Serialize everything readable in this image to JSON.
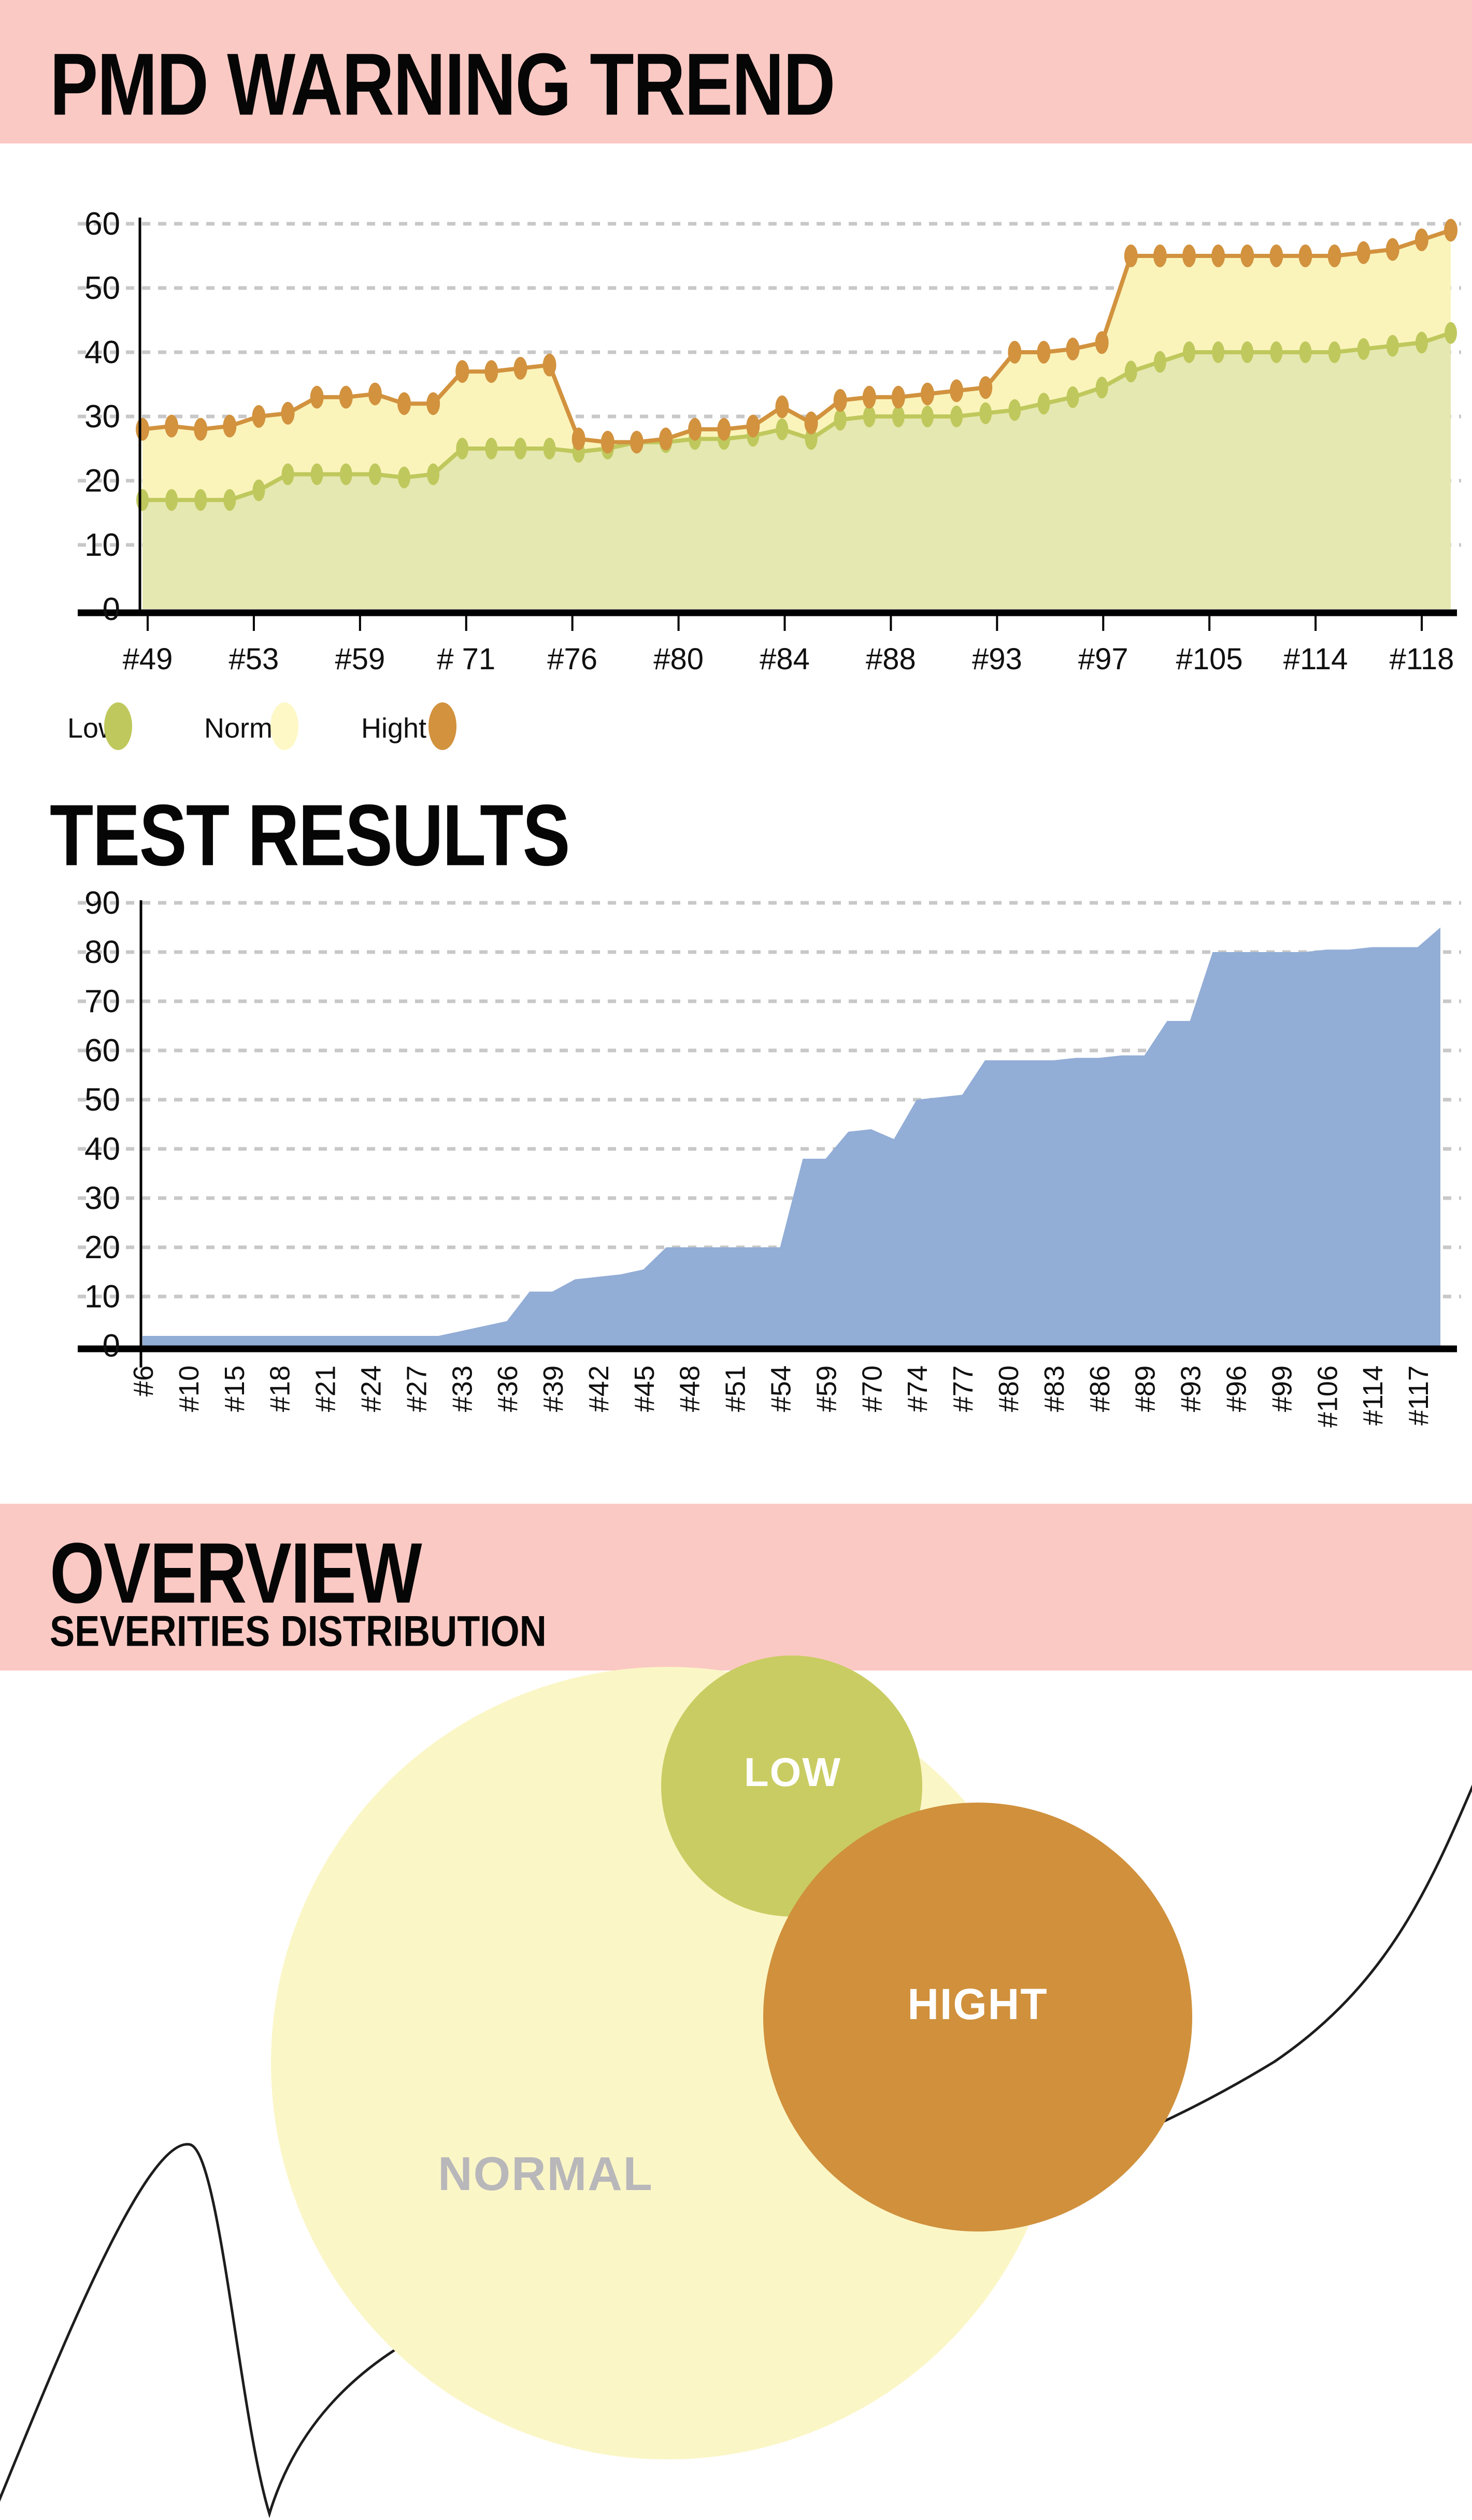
{
  "page": {
    "background": "#ffffff",
    "accent_pink": "#fbc9c4"
  },
  "section1": {
    "title": "PMD WARNING TREND"
  },
  "section2": {
    "title": "TEST RESULTS"
  },
  "section3": {
    "title": "OVERVIEW",
    "subtitle": "SEVERITIES DISTRIBUTION"
  },
  "chart_data": [
    {
      "id": "pmd-warning-trend",
      "type": "line",
      "title": "PMD WARNING TREND",
      "xlabel": "",
      "ylabel": "",
      "ylim": [
        0,
        60
      ],
      "yticks": [
        0,
        10,
        20,
        30,
        40,
        50,
        60
      ],
      "grid": "horizontal-dashed",
      "grid_color": "#c8c8c8",
      "legend_position": "bottom-left",
      "legend": [
        {
          "label": "Low",
          "color": "#bfc85c"
        },
        {
          "label": "Normal",
          "color": "#fdf8c6"
        },
        {
          "label": "Hight",
          "color": "#d2923e"
        }
      ],
      "xtick_labels": [
        "#49",
        "#53",
        "#59",
        "# 71",
        "#76",
        "#80",
        "#84",
        "#88",
        "#93",
        "#97",
        "#105",
        "#114",
        "#118"
      ],
      "series": [
        {
          "name": "Low",
          "line_color": "#bfc85c",
          "fill_color": "#e5e8b0",
          "values": [
            17,
            17,
            17,
            17,
            18.5,
            21,
            21,
            21,
            21,
            20.5,
            21,
            25,
            25,
            25,
            25,
            24.5,
            25,
            26,
            26,
            26.5,
            26.5,
            27,
            28,
            26.5,
            29.5,
            30,
            30,
            30,
            30,
            30.5,
            31,
            32,
            33,
            34.5,
            37,
            38.5,
            40,
            40,
            40,
            40,
            40,
            40,
            40.5,
            41,
            41.5,
            43
          ]
        },
        {
          "name": "Hight",
          "line_color": "#d2923e",
          "fill_color": "#faf4bb",
          "values": [
            28,
            28.5,
            28,
            28.5,
            30,
            30.5,
            33,
            33,
            33.5,
            32,
            32,
            37,
            37,
            37.5,
            38,
            26.5,
            26,
            26,
            26.5,
            28,
            28,
            28.5,
            31.5,
            29,
            32.5,
            33,
            33,
            33.5,
            34,
            34.5,
            40,
            40,
            40.5,
            41.5,
            55,
            55,
            55,
            55,
            55,
            55,
            55,
            55,
            55.5,
            56,
            57.5,
            59
          ]
        }
      ]
    },
    {
      "id": "test-results",
      "type": "area",
      "title": "TEST RESULTS",
      "xlabel": "",
      "ylabel": "",
      "ylim": [
        0,
        90
      ],
      "yticks": [
        0,
        10,
        20,
        30,
        40,
        50,
        60,
        70,
        80,
        90
      ],
      "grid": "horizontal-dashed",
      "grid_color": "#c8c8c8",
      "fill_color": "#92add6",
      "label_every_cols": 2,
      "xtick_labels": [
        "#6",
        "#10",
        "#15",
        "#18",
        "#21",
        "#24",
        "#27",
        "#33",
        "#36",
        "#39",
        "#42",
        "#45",
        "#48",
        "#51",
        "#54",
        "#59",
        "#70",
        "#74",
        "#77",
        "#80",
        "#83",
        "#86",
        "#89",
        "#93",
        "#96",
        "#99",
        "#106",
        "#114",
        "#117"
      ],
      "values": [
        2,
        2,
        2,
        2,
        2,
        2,
        2,
        2,
        2,
        2,
        2,
        2,
        2,
        2,
        3,
        4,
        5,
        11,
        11,
        13.5,
        14,
        14.5,
        15.5,
        20,
        20,
        20,
        20,
        20,
        20,
        38,
        38,
        43.5,
        44,
        42,
        50,
        50.5,
        51,
        58,
        58,
        58,
        58,
        58.5,
        58.5,
        59,
        59,
        66,
        66,
        80,
        80,
        80,
        80,
        80,
        80.5,
        80.5,
        81,
        81,
        81,
        85
      ]
    },
    {
      "id": "severities-distribution",
      "type": "bubble",
      "title": "SEVERITIES DISTRIBUTION",
      "curve_color": "#1d1d1d",
      "bubbles": [
        {
          "name": "normal",
          "label": "NORMAL",
          "color": "#fbf6c6",
          "label_color": "#b8b7ba",
          "cx": 1288,
          "cy": 3983,
          "r": 765,
          "label_cx": 1053,
          "label_cy": 4195,
          "label_size": 92
        },
        {
          "name": "low",
          "label": "LOW",
          "color": "#c9cc62",
          "label_color": "#ffffff",
          "cx": 1528,
          "cy": 3448,
          "r": 252,
          "label_cx": 1530,
          "label_cy": 3420,
          "label_size": 78
        },
        {
          "name": "hight",
          "label": "HIGHT",
          "color": "#d0903c",
          "label_color": "#ffffff",
          "cx": 1887,
          "cy": 3894,
          "r": 414,
          "label_cx": 1887,
          "label_cy": 3868,
          "label_size": 84
        }
      ]
    }
  ]
}
